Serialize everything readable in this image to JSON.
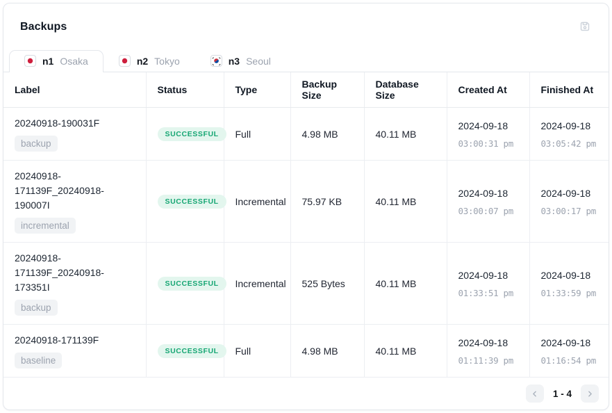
{
  "panel": {
    "title": "Backups"
  },
  "icons": {
    "header_action": "save-icon",
    "pagination_prev": "chevron-left-icon",
    "pagination_next": "chevron-right-icon"
  },
  "tabs": [
    {
      "node": "n1",
      "city": "Osaka",
      "flag": "japan",
      "active": true
    },
    {
      "node": "n2",
      "city": "Tokyo",
      "flag": "japan",
      "active": false
    },
    {
      "node": "n3",
      "city": "Seoul",
      "flag": "korea",
      "active": false
    }
  ],
  "table": {
    "columns": [
      "Label",
      "Status",
      "Type",
      "Backup Size",
      "Database Size",
      "Created At",
      "Finished At"
    ],
    "rows": [
      {
        "label": "20240918-190031F",
        "tag": "backup",
        "status": "SUCCESSFUL",
        "type": "Full",
        "backup_size": "4.98 MB",
        "database_size": "40.11 MB",
        "created_date": "2024-09-18",
        "created_time": "03:00:31 pm",
        "finished_date": "2024-09-18",
        "finished_time": "03:05:42 pm"
      },
      {
        "label": "20240918-171139F_20240918-190007I",
        "tag": "incremental",
        "status": "SUCCESSFUL",
        "type": "Incremental",
        "backup_size": "75.97 KB",
        "database_size": "40.11 MB",
        "created_date": "2024-09-18",
        "created_time": "03:00:07 pm",
        "finished_date": "2024-09-18",
        "finished_time": "03:00:17 pm"
      },
      {
        "label": "20240918-171139F_20240918-173351I",
        "tag": "backup",
        "status": "SUCCESSFUL",
        "type": "Incremental",
        "backup_size": "525 Bytes",
        "database_size": "40.11 MB",
        "created_date": "2024-09-18",
        "created_time": "01:33:51 pm",
        "finished_date": "2024-09-18",
        "finished_time": "01:33:59 pm"
      },
      {
        "label": "20240918-171139F",
        "tag": "baseline",
        "status": "SUCCESSFUL",
        "type": "Full",
        "backup_size": "4.98 MB",
        "database_size": "40.11 MB",
        "created_date": "2024-09-18",
        "created_time": "01:11:39 pm",
        "finished_date": "2024-09-18",
        "finished_time": "01:16:54 pm"
      }
    ]
  },
  "pagination": {
    "range": "1 - 4"
  },
  "colors": {
    "status_success_bg": "#e3f6ee",
    "status_success_text": "#16a673",
    "border": "#e4e7ec",
    "muted_text": "#9ca3af",
    "tag_bg": "#f1f3f5"
  }
}
